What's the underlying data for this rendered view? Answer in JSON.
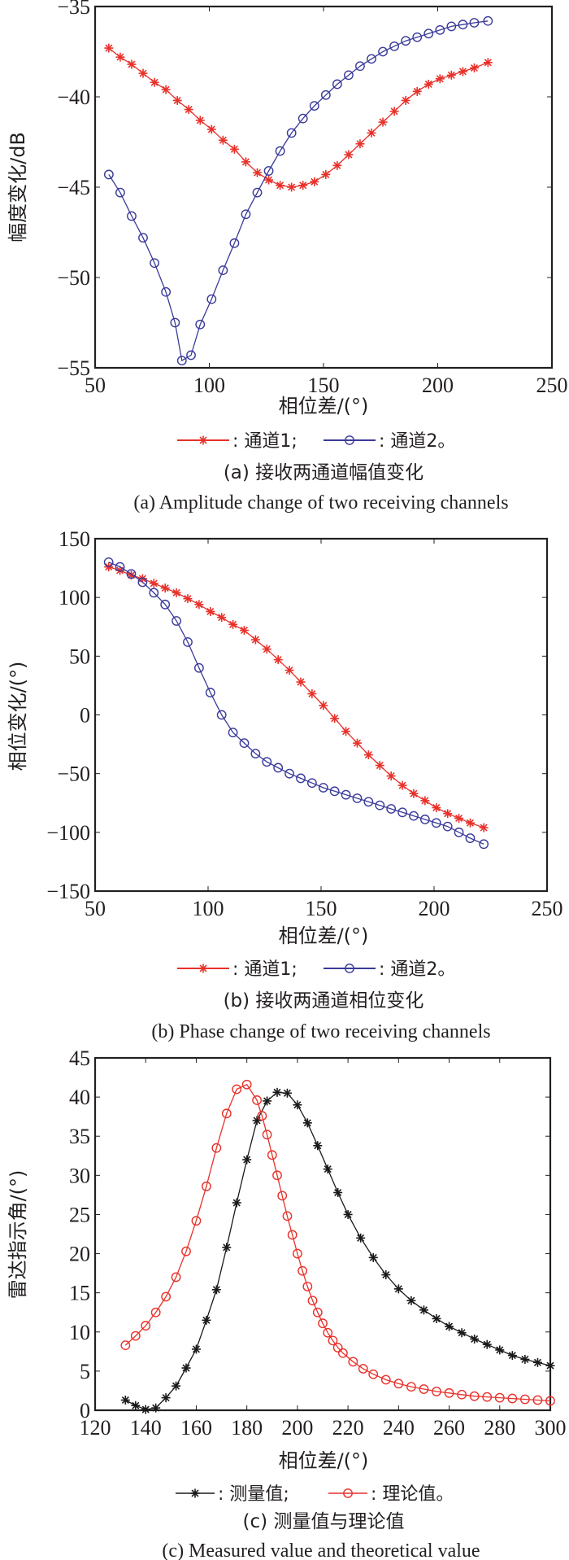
{
  "chart_data": [
    {
      "id": "a",
      "type": "line",
      "xlabel": "相位差/(°)",
      "ylabel": "幅度变化/dB",
      "xlim": [
        50,
        250
      ],
      "ylim": [
        -55,
        -35
      ],
      "xticks": [
        50,
        100,
        150,
        200,
        250
      ],
      "yticks": [
        -35,
        -40,
        -45,
        -50,
        -55
      ],
      "ytick_labels": [
        "−35",
        "−40",
        "−45",
        "−50",
        "−55"
      ],
      "grid": false,
      "legend": {
        "position": "below",
        "items": [
          {
            "label": ": 通道1;",
            "marker": "asterisk",
            "color": "#e8312a"
          },
          {
            "label": ": 通道2。",
            "marker": "circle",
            "color": "#3a3a9a"
          }
        ]
      },
      "caption_cn": "(a) 接收两通道幅值变化",
      "caption_en": "(a) Amplitude change of two receiving channels",
      "series": [
        {
          "name": "通道1",
          "marker": "asterisk",
          "color": "#e8312a",
          "x": [
            56,
            61,
            66,
            71,
            76,
            81,
            86,
            91,
            96,
            101,
            106,
            111,
            116,
            121,
            126,
            131,
            136,
            141,
            146,
            151,
            156,
            161,
            166,
            171,
            176,
            181,
            186,
            191,
            196,
            201,
            206,
            211,
            216,
            222
          ],
          "y": [
            -37.3,
            -37.8,
            -38.2,
            -38.7,
            -39.2,
            -39.6,
            -40.2,
            -40.7,
            -41.3,
            -41.8,
            -42.4,
            -42.9,
            -43.6,
            -44.2,
            -44.6,
            -44.9,
            -45.0,
            -44.9,
            -44.7,
            -44.3,
            -43.8,
            -43.2,
            -42.6,
            -42.0,
            -41.4,
            -40.8,
            -40.2,
            -39.7,
            -39.3,
            -39.0,
            -38.8,
            -38.6,
            -38.4,
            -38.1
          ]
        },
        {
          "name": "通道2",
          "marker": "circle",
          "color": "#3a3a9a",
          "x": [
            56,
            61,
            66,
            71,
            76,
            81,
            85,
            88,
            92,
            96,
            101,
            106,
            111,
            116,
            121,
            126,
            131,
            136,
            141,
            146,
            151,
            156,
            161,
            166,
            171,
            176,
            181,
            186,
            191,
            196,
            201,
            206,
            211,
            216,
            222
          ],
          "y": [
            -44.3,
            -45.3,
            -46.6,
            -47.8,
            -49.2,
            -50.8,
            -52.5,
            -54.6,
            -54.3,
            -52.6,
            -51.2,
            -49.6,
            -48.1,
            -46.5,
            -45.3,
            -44.1,
            -43.0,
            -42.0,
            -41.2,
            -40.5,
            -39.9,
            -39.3,
            -38.8,
            -38.3,
            -37.9,
            -37.5,
            -37.2,
            -36.9,
            -36.7,
            -36.5,
            -36.3,
            -36.1,
            -36.0,
            -35.9,
            -35.8
          ]
        }
      ]
    },
    {
      "id": "b",
      "type": "line",
      "xlabel": "相位差/(°)",
      "ylabel": "相位变化/(°)",
      "xlim": [
        50,
        250
      ],
      "ylim": [
        -150,
        150
      ],
      "xticks": [
        50,
        100,
        150,
        200,
        250
      ],
      "yticks": [
        150,
        100,
        50,
        0,
        -50,
        -100,
        -150
      ],
      "ytick_labels": [
        "150",
        "100",
        "50",
        "0",
        "−50",
        "−100",
        "−150"
      ],
      "grid": false,
      "legend": {
        "position": "below",
        "items": [
          {
            "label": ": 通道1;",
            "marker": "asterisk",
            "color": "#e8312a"
          },
          {
            "label": ": 通道2。",
            "marker": "circle",
            "color": "#3a3a9a"
          }
        ]
      },
      "caption_cn": "(b) 接收两通道相位变化",
      "caption_en": "(b) Phase change of two receiving channels",
      "series": [
        {
          "name": "通道1",
          "marker": "asterisk",
          "color": "#e8312a",
          "x": [
            56,
            61,
            66,
            71,
            76,
            81,
            86,
            91,
            96,
            101,
            106,
            111,
            116,
            121,
            126,
            131,
            136,
            141,
            146,
            151,
            156,
            161,
            166,
            171,
            176,
            181,
            186,
            191,
            196,
            201,
            206,
            211,
            216,
            222
          ],
          "y": [
            126,
            123,
            119,
            116,
            112,
            108,
            104,
            99,
            94,
            88,
            83,
            77,
            72,
            64,
            56,
            47,
            38,
            28,
            18,
            8,
            -3,
            -14,
            -24,
            -34,
            -43,
            -52,
            -60,
            -67,
            -73,
            -79,
            -84,
            -88,
            -92,
            -96
          ]
        },
        {
          "name": "通道2",
          "marker": "circle",
          "color": "#3a3a9a",
          "x": [
            56,
            61,
            66,
            71,
            76,
            81,
            86,
            91,
            96,
            101,
            106,
            111,
            116,
            121,
            126,
            131,
            136,
            141,
            146,
            151,
            156,
            161,
            166,
            171,
            176,
            181,
            186,
            191,
            196,
            201,
            206,
            211,
            216,
            222
          ],
          "y": [
            130,
            126,
            120,
            113,
            104,
            94,
            80,
            62,
            40,
            19,
            0,
            -15,
            -24,
            -33,
            -40,
            -45,
            -50,
            -54,
            -58,
            -62,
            -65,
            -68,
            -71,
            -74,
            -77,
            -80,
            -83,
            -86,
            -89,
            -92,
            -95,
            -100,
            -105,
            -110
          ]
        }
      ]
    },
    {
      "id": "c",
      "type": "line",
      "xlabel": "相位差/(°)",
      "ylabel": "雷达指示角/(°)",
      "xlim": [
        120,
        300
      ],
      "ylim": [
        0,
        45
      ],
      "xticks": [
        120,
        140,
        160,
        180,
        200,
        220,
        240,
        260,
        280,
        300
      ],
      "yticks": [
        0,
        5,
        10,
        15,
        20,
        25,
        30,
        35,
        40,
        45
      ],
      "ytick_labels": [
        "0",
        "5",
        "10",
        "15",
        "20",
        "25",
        "30",
        "35",
        "40",
        "45"
      ],
      "grid": false,
      "legend": {
        "position": "below",
        "items": [
          {
            "label": ": 测量值;",
            "marker": "asterisk",
            "color": "#1a1a1a"
          },
          {
            "label": ": 理论值。",
            "marker": "circle",
            "color": "#e8312a"
          }
        ]
      },
      "caption_cn": "(c) 测量值与理论值",
      "caption_en": "(c) Measured value and theoretical value",
      "series": [
        {
          "name": "测量值",
          "marker": "asterisk",
          "color": "#1a1a1a",
          "x": [
            132,
            136,
            140,
            144,
            148,
            152,
            156,
            160,
            164,
            168,
            172,
            176,
            180,
            184,
            188,
            192,
            196,
            200,
            204,
            208,
            212,
            216,
            220,
            225,
            230,
            235,
            240,
            245,
            250,
            255,
            260,
            265,
            270,
            275,
            280,
            285,
            290,
            295,
            300
          ],
          "y": [
            1.3,
            0.6,
            0.1,
            0.3,
            1.6,
            3.1,
            5.4,
            7.8,
            11.5,
            15.4,
            20.8,
            26.5,
            32.0,
            37.0,
            39.5,
            40.6,
            40.5,
            39.0,
            36.7,
            33.8,
            30.8,
            27.8,
            25.0,
            22.0,
            19.5,
            17.3,
            15.5,
            14.0,
            12.8,
            11.7,
            10.7,
            9.9,
            9.1,
            8.4,
            7.7,
            7.0,
            6.5,
            6.1,
            5.7
          ]
        },
        {
          "name": "理论值",
          "marker": "circle",
          "color": "#e8312a",
          "x": [
            132,
            136,
            140,
            144,
            148,
            152,
            156,
            160,
            164,
            168,
            172,
            176,
            180,
            184,
            186,
            188,
            190,
            192,
            194,
            196,
            198,
            200,
            202,
            204,
            206,
            208,
            210,
            212,
            214,
            216,
            218,
            222,
            226,
            230,
            235,
            240,
            245,
            250,
            255,
            260,
            265,
            270,
            275,
            280,
            285,
            290,
            295,
            300
          ],
          "y": [
            8.3,
            9.5,
            10.8,
            12.5,
            14.5,
            17.0,
            20.3,
            24.2,
            28.6,
            33.5,
            37.9,
            41.0,
            41.6,
            39.6,
            37.6,
            35.2,
            32.6,
            30.0,
            27.4,
            24.8,
            22.4,
            20.0,
            17.8,
            15.8,
            14.0,
            12.5,
            11.1,
            9.9,
            8.9,
            8.0,
            7.3,
            6.2,
            5.3,
            4.6,
            3.9,
            3.4,
            3.0,
            2.7,
            2.4,
            2.2,
            2.0,
            1.8,
            1.7,
            1.6,
            1.5,
            1.4,
            1.3,
            1.2
          ]
        }
      ]
    }
  ]
}
